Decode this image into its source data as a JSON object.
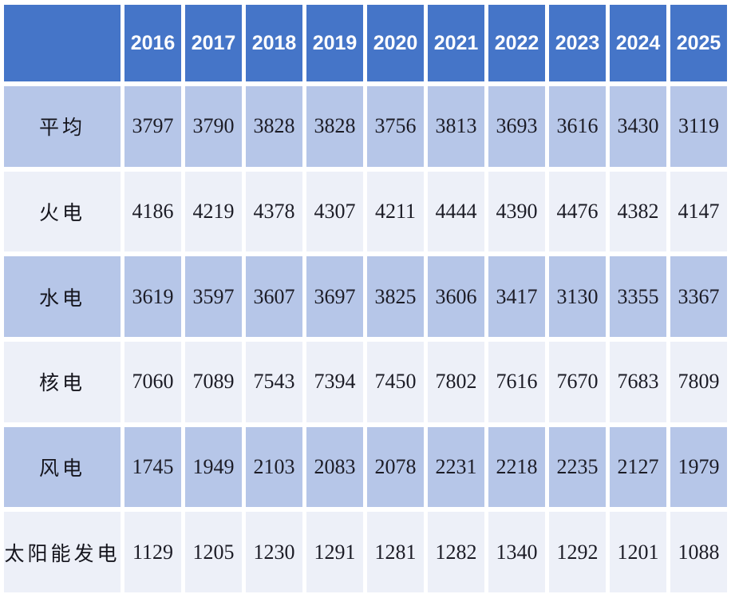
{
  "chart_data": {
    "type": "table",
    "corner_label": "",
    "columns": [
      "2016",
      "2017",
      "2018",
      "2019",
      "2020",
      "2021",
      "2022",
      "2023",
      "2024",
      "2025"
    ],
    "rows": [
      {
        "label": "平均",
        "values": [
          "3797",
          "3790",
          "3828",
          "3828",
          "3756",
          "3813",
          "3693",
          "3616",
          "3430",
          "3119"
        ]
      },
      {
        "label": "火电",
        "values": [
          "4186",
          "4219",
          "4378",
          "4307",
          "4211",
          "4444",
          "4390",
          "4476",
          "4382",
          "4147"
        ]
      },
      {
        "label": "水电",
        "values": [
          "3619",
          "3597",
          "3607",
          "3697",
          "3825",
          "3606",
          "3417",
          "3130",
          "3355",
          "3367"
        ]
      },
      {
        "label": "核电",
        "values": [
          "7060",
          "7089",
          "7543",
          "7394",
          "7450",
          "7802",
          "7616",
          "7670",
          "7683",
          "7809"
        ]
      },
      {
        "label": "风电",
        "values": [
          "1745",
          "1949",
          "2103",
          "2083",
          "2078",
          "2231",
          "2218",
          "2235",
          "2127",
          "1979"
        ]
      },
      {
        "label": "太阳能发电",
        "values": [
          "1129",
          "1205",
          "1230",
          "1291",
          "1281",
          "1282",
          "1340",
          "1292",
          "1201",
          "1088"
        ]
      }
    ],
    "colors": {
      "header_bg": "#4575C8",
      "header_text": "#FFFFFF",
      "band_light_blue": "#B6C6E8",
      "band_near_white": "#EDF0F8",
      "cell_text": "#1C1C26",
      "gridline_gap": "#FFFFFF"
    },
    "layout": {
      "banded_rows": true,
      "header_position": "top",
      "gridlines": "white gaps between all cells",
      "band_order": [
        "light_blue",
        "near_white",
        "light_blue",
        "near_white",
        "light_blue",
        "near_white"
      ]
    }
  }
}
